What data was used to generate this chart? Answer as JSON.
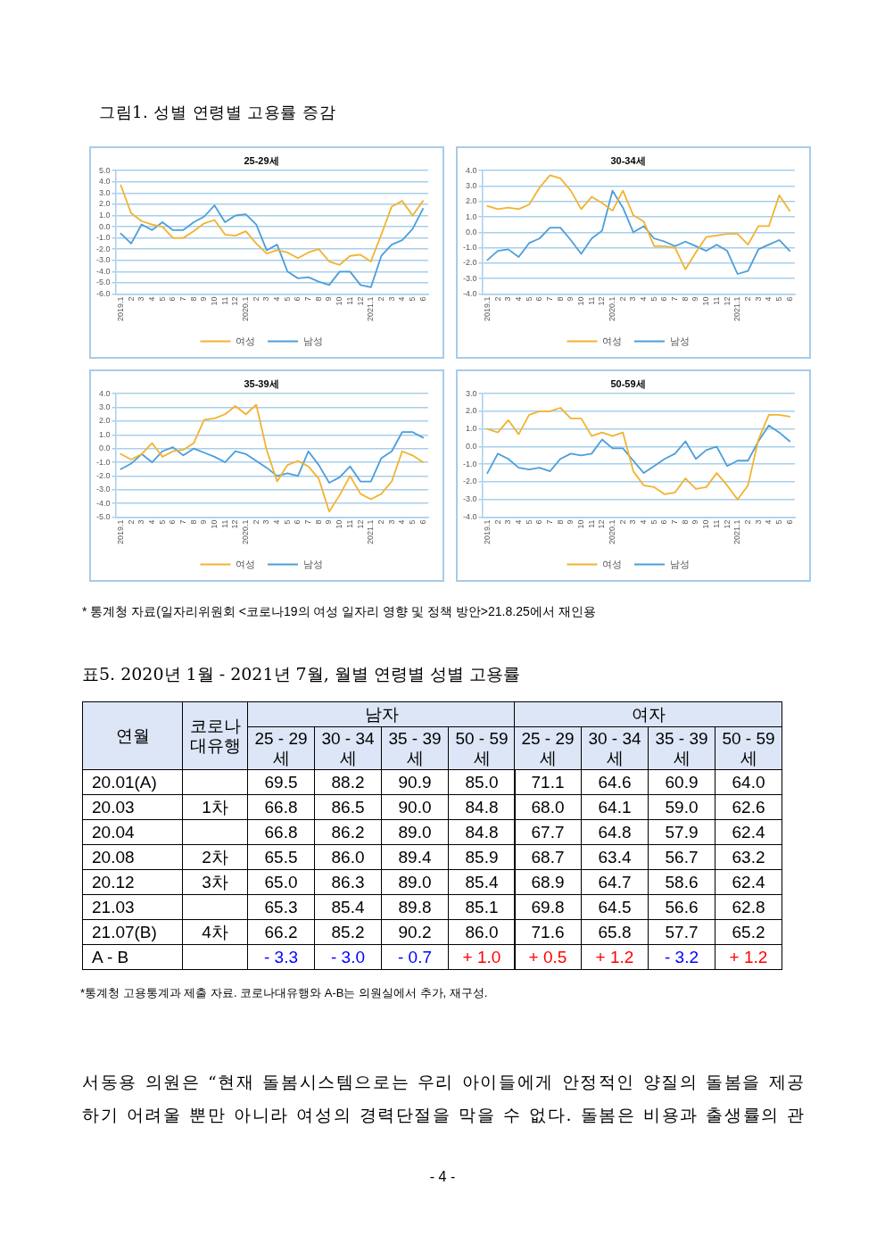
{
  "chart_data": [
    {
      "type": "line",
      "title": "25-29세",
      "annotations": [
        "그림1. 성별 연령별 고용률 증감"
      ],
      "categories": [
        "2019.1",
        "2",
        "3",
        "4",
        "5",
        "6",
        "7",
        "8",
        "9",
        "10",
        "11",
        "12",
        "2020.1",
        "2",
        "3",
        "4",
        "5",
        "6",
        "7",
        "8",
        "9",
        "10",
        "11",
        "12",
        "2021.1",
        "2",
        "3",
        "4",
        "5",
        "6"
      ],
      "series": [
        {
          "name": "여성",
          "color": "#f2b32e",
          "values": [
            3.7,
            1.2,
            0.5,
            0.2,
            0.0,
            -1.0,
            -1.0,
            -0.4,
            0.3,
            0.6,
            -0.7,
            -0.8,
            -0.4,
            -1.5,
            -2.4,
            -2.1,
            -2.3,
            -2.8,
            -2.3,
            -2.0,
            -3.1,
            -3.4,
            -2.6,
            -2.5,
            -3.1,
            -0.7,
            1.8,
            2.3,
            1.0,
            2.3
          ]
        },
        {
          "name": "남성",
          "color": "#4c9ed9",
          "values": [
            -0.6,
            -1.5,
            0.2,
            -0.3,
            0.4,
            -0.3,
            -0.3,
            0.4,
            0.9,
            1.9,
            0.4,
            1.0,
            1.1,
            0.2,
            -2.1,
            -1.6,
            -4.0,
            -4.6,
            -4.5,
            -4.9,
            -5.2,
            -4.0,
            -4.0,
            -5.2,
            -5.4,
            -2.6,
            -1.6,
            -1.2,
            -0.2,
            1.6
          ]
        }
      ],
      "ylim": [
        -6,
        5
      ],
      "yticks": [
        {
          "value": -6,
          "label": "-6.0"
        },
        {
          "value": -5,
          "label": "-5.0"
        },
        {
          "value": -4,
          "label": "-4.0"
        },
        {
          "value": -3,
          "label": "-3.0"
        },
        {
          "value": -2,
          "label": "-2.0"
        },
        {
          "value": -1,
          "label": "-1.0"
        },
        {
          "value": 0,
          "label": "0.0"
        },
        {
          "value": 1,
          "label": "1.0"
        },
        {
          "value": 2,
          "label": "2.0"
        },
        {
          "value": 3,
          "label": "3.0"
        },
        {
          "value": 4,
          "label": "4.0"
        },
        {
          "value": 5,
          "label": "5.0"
        }
      ],
      "grid": "y",
      "legend": "bottom"
    },
    {
      "type": "line",
      "title": "30-34세",
      "categories": [
        "2019.1",
        "2",
        "3",
        "4",
        "5",
        "6",
        "7",
        "8",
        "9",
        "10",
        "11",
        "12",
        "2020.1",
        "2",
        "3",
        "4",
        "5",
        "6",
        "7",
        "8",
        "9",
        "10",
        "11",
        "12",
        "2021.1",
        "2",
        "3",
        "4",
        "5",
        "6"
      ],
      "series": [
        {
          "name": "여성",
          "color": "#f2b32e",
          "values": [
            1.7,
            1.5,
            1.6,
            1.5,
            1.8,
            2.9,
            3.7,
            3.5,
            2.7,
            1.5,
            2.3,
            1.9,
            1.4,
            2.7,
            1.1,
            0.7,
            -0.9,
            -0.9,
            -1.0,
            -2.4,
            -1.3,
            -0.3,
            -0.2,
            -0.1,
            -0.1,
            -0.8,
            0.4,
            0.4,
            2.4,
            1.4
          ]
        },
        {
          "name": "남성",
          "color": "#4c9ed9",
          "values": [
            -1.8,
            -1.2,
            -1.1,
            -1.6,
            -0.7,
            -0.4,
            0.3,
            0.3,
            -0.5,
            -1.4,
            -0.4,
            0.1,
            2.7,
            1.6,
            0.0,
            0.4,
            -0.4,
            -0.6,
            -0.9,
            -0.6,
            -0.9,
            -1.2,
            -0.8,
            -1.2,
            -2.7,
            -2.5,
            -1.1,
            -0.8,
            -0.5,
            -1.2
          ]
        }
      ],
      "ylim": [
        -4,
        4
      ],
      "yticks": [
        {
          "value": -4,
          "label": "-4.0"
        },
        {
          "value": -3,
          "label": "-3.0"
        },
        {
          "value": -2,
          "label": "-2.0"
        },
        {
          "value": -1,
          "label": "-1.0"
        },
        {
          "value": 0,
          "label": "0.0"
        },
        {
          "value": 1,
          "label": "1.0"
        },
        {
          "value": 2,
          "label": "2.0"
        },
        {
          "value": 3,
          "label": "3.0"
        },
        {
          "value": 4,
          "label": "4.0"
        }
      ],
      "grid": "y",
      "legend": "bottom"
    },
    {
      "type": "line",
      "title": "35-39세",
      "categories": [
        "2019.1",
        "2",
        "3",
        "4",
        "5",
        "6",
        "7",
        "8",
        "9",
        "10",
        "11",
        "12",
        "2020.1",
        "2",
        "3",
        "4",
        "5",
        "6",
        "7",
        "8",
        "9",
        "10",
        "11",
        "12",
        "2021.1",
        "2",
        "3",
        "4",
        "5",
        "6"
      ],
      "series": [
        {
          "name": "여성",
          "color": "#f2b32e",
          "values": [
            -0.4,
            -0.8,
            -0.4,
            0.4,
            -0.6,
            -0.2,
            -0.1,
            0.4,
            2.1,
            2.2,
            2.5,
            3.1,
            2.5,
            3.2,
            -0.1,
            -2.4,
            -1.2,
            -0.9,
            -1.3,
            -2.2,
            -4.6,
            -3.4,
            -2.0,
            -3.3,
            -3.7,
            -3.3,
            -2.4,
            -0.2,
            -0.5,
            -1.0
          ]
        },
        {
          "name": "남성",
          "color": "#4c9ed9",
          "values": [
            -1.5,
            -1.1,
            -0.4,
            -1.0,
            -0.2,
            0.1,
            -0.5,
            0.0,
            -0.3,
            -0.6,
            -1.0,
            -0.2,
            -0.4,
            -0.9,
            -1.4,
            -2.0,
            -1.8,
            -2.0,
            -0.2,
            -1.2,
            -2.5,
            -2.1,
            -1.3,
            -2.4,
            -2.4,
            -0.7,
            -0.2,
            1.2,
            1.2,
            0.8
          ]
        }
      ],
      "ylim": [
        -5,
        4
      ],
      "yticks": [
        {
          "value": -5,
          "label": "-5.0"
        },
        {
          "value": -4,
          "label": "-4.0"
        },
        {
          "value": -3,
          "label": "-3.0"
        },
        {
          "value": -2,
          "label": "-2.0"
        },
        {
          "value": -1,
          "label": "-1.0"
        },
        {
          "value": 0,
          "label": "0.0"
        },
        {
          "value": 1,
          "label": "1.0"
        },
        {
          "value": 2,
          "label": "2.0"
        },
        {
          "value": 3,
          "label": "3.0"
        },
        {
          "value": 4,
          "label": "4.0"
        }
      ],
      "grid": "y",
      "legend": "bottom"
    },
    {
      "type": "line",
      "title": "50-59세",
      "annotations": [
        "* 통계청 자료(일자리위원회 <코로나19의 여성 일자리 영향 및 정책 방안>21.8.25에서 재인용"
      ],
      "categories": [
        "2019.1",
        "2",
        "3",
        "4",
        "5",
        "6",
        "7",
        "8",
        "9",
        "10",
        "11",
        "12",
        "2020.1",
        "2",
        "3",
        "4",
        "5",
        "6",
        "7",
        "8",
        "9",
        "10",
        "11",
        "12",
        "2021.1",
        "2",
        "3",
        "4",
        "5",
        "6"
      ],
      "series": [
        {
          "name": "여성",
          "color": "#f2b32e",
          "values": [
            1.0,
            0.8,
            1.5,
            0.7,
            1.8,
            2.0,
            2.0,
            2.2,
            1.6,
            1.6,
            0.6,
            0.8,
            0.6,
            0.8,
            -1.4,
            -2.2,
            -2.3,
            -2.7,
            -2.6,
            -1.8,
            -2.4,
            -2.3,
            -1.5,
            -2.2,
            -3.0,
            -2.2,
            0.4,
            1.8,
            1.8,
            1.7
          ]
        },
        {
          "name": "남성",
          "color": "#4c9ed9",
          "values": [
            -1.5,
            -0.4,
            -0.7,
            -1.2,
            -1.3,
            -1.2,
            -1.4,
            -0.7,
            -0.4,
            -0.5,
            -0.4,
            0.4,
            -0.1,
            -0.1,
            -0.8,
            -1.5,
            -1.1,
            -0.7,
            -0.4,
            0.3,
            -0.7,
            -0.2,
            0.0,
            -1.1,
            -0.8,
            -0.8,
            0.3,
            1.2,
            0.8,
            0.3
          ]
        }
      ],
      "ylim": [
        -4,
        3
      ],
      "yticks": [
        {
          "value": -4,
          "label": "-4.0"
        },
        {
          "value": -3,
          "label": "-3.0"
        },
        {
          "value": -2,
          "label": "-2.0"
        },
        {
          "value": -1,
          "label": "-1.0"
        },
        {
          "value": 0,
          "label": "0.0"
        },
        {
          "value": 1,
          "label": "1.0"
        },
        {
          "value": 2,
          "label": "2.0"
        },
        {
          "value": 3,
          "label": "3.0"
        }
      ],
      "grid": "y",
      "legend": "bottom"
    },
    {
      "type": "heatmap",
      "title": "표5. 2020년 1월 - 2021년 7월, 월별 연령별 성별 고용률",
      "xlabel": "남자",
      "ylabel": "연월",
      "y2label": "코로나 대유행",
      "categories": [
        "25 - 29세",
        "30 - 34세",
        "35 - 39세",
        "50 - 59세"
      ],
      "y_categories": [
        "20.01(A)",
        "20.03",
        "20.04",
        "20.08",
        "20.12",
        "21.03",
        "21.07(B)",
        "A - B"
      ],
      "y2_categories": [
        null,
        "1차",
        null,
        "2차",
        "3차",
        null,
        "4차",
        null
      ],
      "cells": [
        [
          69.5,
          88.2,
          90.9,
          85.0
        ],
        [
          66.8,
          86.5,
          90.0,
          84.8
        ],
        [
          66.8,
          86.2,
          89.0,
          84.8
        ],
        [
          65.5,
          86.0,
          89.4,
          85.9
        ],
        [
          65.0,
          86.3,
          89.0,
          85.4
        ],
        [
          65.3,
          85.4,
          89.8,
          85.1
        ],
        [
          66.2,
          85.2,
          90.2,
          86.0
        ],
        [
          -3.3,
          -3.0,
          -0.7,
          1.0
        ]
      ],
      "cell_labels": [
        [
          "69.5",
          "88.2",
          "90.9",
          "85.0"
        ],
        [
          "66.8",
          "86.5",
          "90.0",
          "84.8"
        ],
        [
          "66.8",
          "86.2",
          "89.0",
          "84.8"
        ],
        [
          "65.5",
          "86.0",
          "89.4",
          "85.9"
        ],
        [
          "65.0",
          "86.3",
          "89.0",
          "85.4"
        ],
        [
          "65.3",
          "85.4",
          "89.8",
          "85.1"
        ],
        [
          "66.2",
          "85.2",
          "90.2",
          "86.0"
        ],
        [
          "- 3.3",
          "- 3.0",
          "- 0.7",
          "+ 1.0"
        ]
      ],
      "colors": [
        [
          null,
          null,
          null,
          null
        ],
        [
          null,
          null,
          null,
          null
        ],
        [
          null,
          null,
          null,
          null
        ],
        [
          null,
          null,
          null,
          null
        ],
        [
          null,
          null,
          null,
          null
        ],
        [
          null,
          null,
          null,
          null
        ],
        [
          null,
          null,
          null,
          null
        ],
        [
          "#0000ff",
          "#0000ff",
          "#0000ff",
          "#ff0000"
        ]
      ],
      "data_labels": true
    },
    {
      "type": "heatmap",
      "xlabel": "여자",
      "tick_labels": "x",
      "categories": [
        "25 - 29세",
        "30 - 34세",
        "35 - 39세",
        "50 - 59세"
      ],
      "y_categories": [
        null,
        null,
        null,
        null,
        null,
        null,
        null,
        null
      ],
      "cells": [
        [
          71.1,
          64.6,
          60.9,
          64.0
        ],
        [
          68.0,
          64.1,
          59.0,
          62.6
        ],
        [
          67.7,
          64.8,
          57.9,
          62.4
        ],
        [
          68.7,
          63.4,
          56.7,
          63.2
        ],
        [
          68.9,
          64.7,
          58.6,
          62.4
        ],
        [
          69.8,
          64.5,
          56.6,
          62.8
        ],
        [
          71.6,
          65.8,
          57.7,
          65.2
        ],
        [
          0.5,
          1.2,
          -3.2,
          1.2
        ]
      ],
      "cell_labels": [
        [
          "71.1",
          "64.6",
          "60.9",
          "64.0"
        ],
        [
          "68.0",
          "64.1",
          "59.0",
          "62.6"
        ],
        [
          "67.7",
          "64.8",
          "57.9",
          "62.4"
        ],
        [
          "68.7",
          "63.4",
          "56.7",
          "63.2"
        ],
        [
          "68.9",
          "64.7",
          "58.6",
          "62.4"
        ],
        [
          "69.8",
          "64.5",
          "56.6",
          "62.8"
        ],
        [
          "71.6",
          "65.8",
          "57.7",
          "65.2"
        ],
        [
          "+ 0.5",
          "+ 1.2",
          "- 3.2",
          "+ 1.2"
        ]
      ],
      "colors": [
        [
          null,
          null,
          null,
          null
        ],
        [
          null,
          null,
          null,
          null
        ],
        [
          null,
          null,
          null,
          null
        ],
        [
          null,
          null,
          null,
          null
        ],
        [
          null,
          null,
          null,
          null
        ],
        [
          null,
          null,
          null,
          null
        ],
        [
          null,
          null,
          null,
          null
        ],
        [
          "#ff0000",
          "#ff0000",
          "#0000ff",
          "#ff0000"
        ]
      ],
      "data_labels": true,
      "annotations": [
        "*통계청 고용통계과 제출 자료. 코로나대유행와 A-B는 의원실에서 추가, 재구성.",
        "서동용 의원은 “현재 돌봄시스템으로는 우리 아이들에게 안정적인 양질의 돌봄을 제공하기 어려울 뿐만 아니라 여성의 경력단절을 막을 수 없다. 돌봄은 비용과 출생률의 관",
        "- 4 -"
      ]
    }
  ]
}
